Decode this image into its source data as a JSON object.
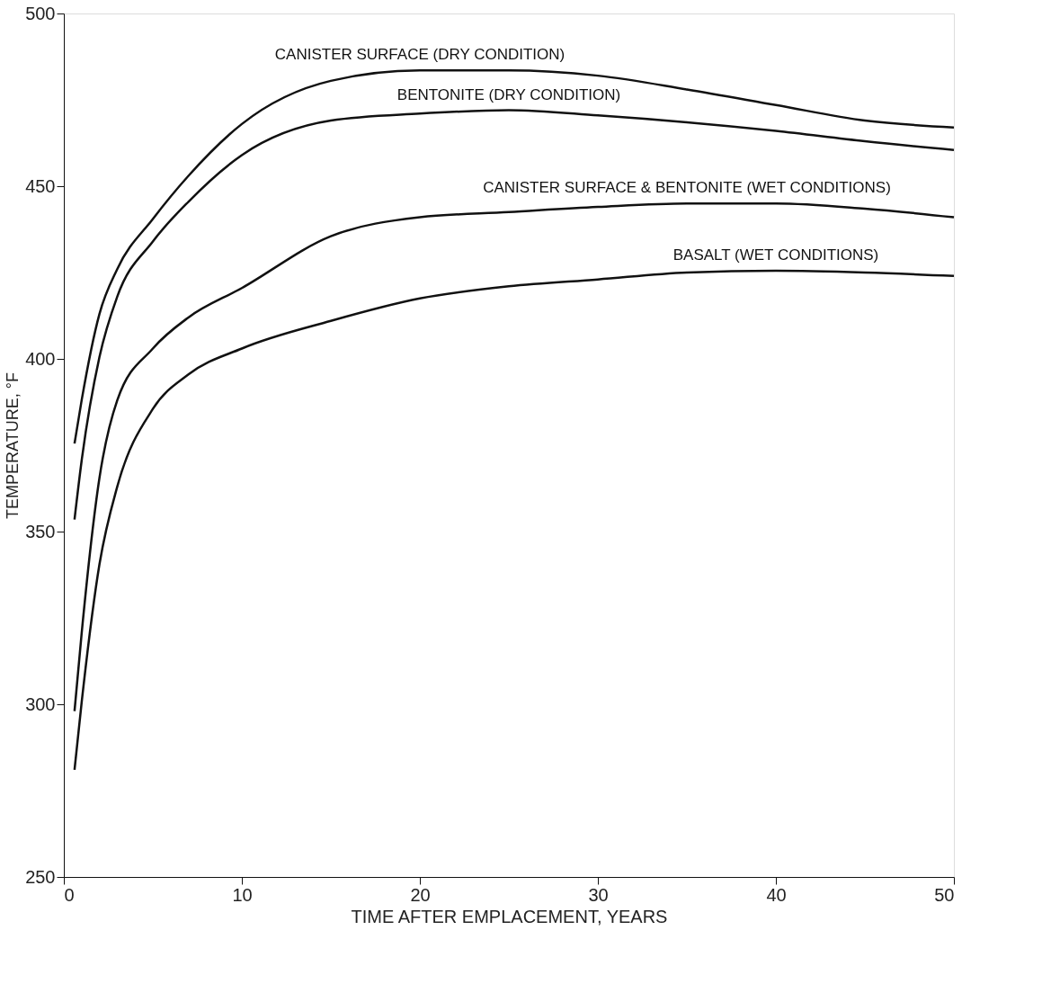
{
  "chart_data": {
    "type": "line",
    "xlabel": "TIME AFTER EMPLACEMENT, YEARS",
    "ylabel": "TEMPERATURE, °F",
    "xlim": [
      0,
      50
    ],
    "ylim": [
      250,
      500
    ],
    "xticks": [
      0,
      10,
      20,
      30,
      40,
      50
    ],
    "yticks": [
      250,
      300,
      350,
      400,
      450,
      500
    ],
    "grid": false,
    "legend": false,
    "marker": "none",
    "line_style": "solid",
    "x": [
      0.6,
      1,
      2,
      3,
      5,
      7,
      10,
      15,
      20,
      25,
      30,
      35,
      40,
      45,
      50
    ],
    "series": [
      {
        "name": "CANISTER SURFACE (DRY CONDITION)",
        "color": "#111111",
        "values": [
          375.5,
          388,
          413,
          426,
          440.5,
          453,
          468,
          480.5,
          483.5,
          483.5,
          482,
          478,
          473.5,
          469,
          467
        ]
      },
      {
        "name": "BENTONITE (DRY CONDITION)",
        "color": "#111111",
        "values": [
          353.5,
          370.5,
          400.5,
          418,
          434,
          445.5,
          459,
          469,
          471,
          472,
          470.5,
          468.5,
          466,
          463,
          460.5
        ]
      },
      {
        "name": "CANISTER SURFACE & BENTONITE (WET CONDITIONS)",
        "color": "#111111",
        "values": [
          298,
          320.5,
          365.5,
          388,
          403,
          412,
          420.5,
          435.5,
          441,
          442.5,
          444,
          445,
          445,
          443.5,
          441
        ]
      },
      {
        "name": "BASALT (WET CONDITIONS)",
        "color": "#111111",
        "values": [
          281,
          300.5,
          340.5,
          363,
          385.5,
          395.5,
          403,
          411,
          417.5,
          421,
          423,
          425,
          425.5,
          425,
          424
        ]
      }
    ]
  }
}
